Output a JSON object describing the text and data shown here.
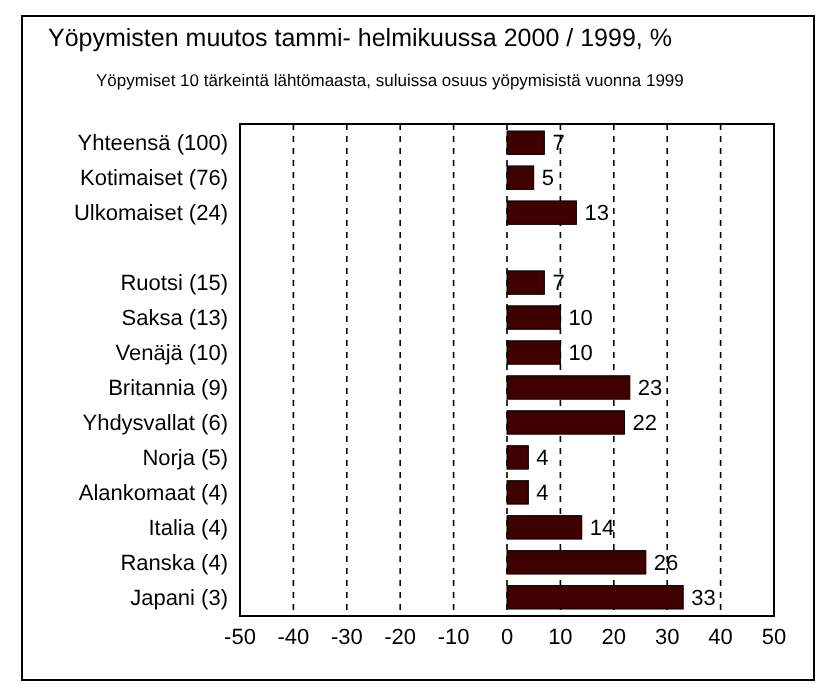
{
  "chart_data": {
    "type": "bar",
    "orientation": "horizontal",
    "title": "Yöpymisten muutos tammi- helmikuussa 2000 / 1999, %",
    "subtitle": "Yöpymiset 10 tärkeintä lähtömaasta, suluissa osuus yöpymisistä vuonna 1999",
    "categories": [
      "Yhteensä (100)",
      "Kotimaiset (76)",
      "Ulkomaiset (24)",
      null,
      "Ruotsi (15)",
      "Saksa (13)",
      "Venäjä (10)",
      "Britannia (9)",
      "Yhdysvallat (6)",
      "Norja (5)",
      "Alankomaat (4)",
      "Italia (4)",
      "Ranska (4)",
      "Japani (3)"
    ],
    "values": [
      7,
      5,
      13,
      null,
      7,
      10,
      10,
      23,
      22,
      4,
      4,
      14,
      26,
      33
    ],
    "color": "#3f0000",
    "data_labels": true,
    "xlim": [
      -50,
      50
    ],
    "xticks": [
      -50,
      -40,
      -30,
      -20,
      -10,
      0,
      10,
      20,
      30,
      40,
      50
    ],
    "grid": "x"
  }
}
